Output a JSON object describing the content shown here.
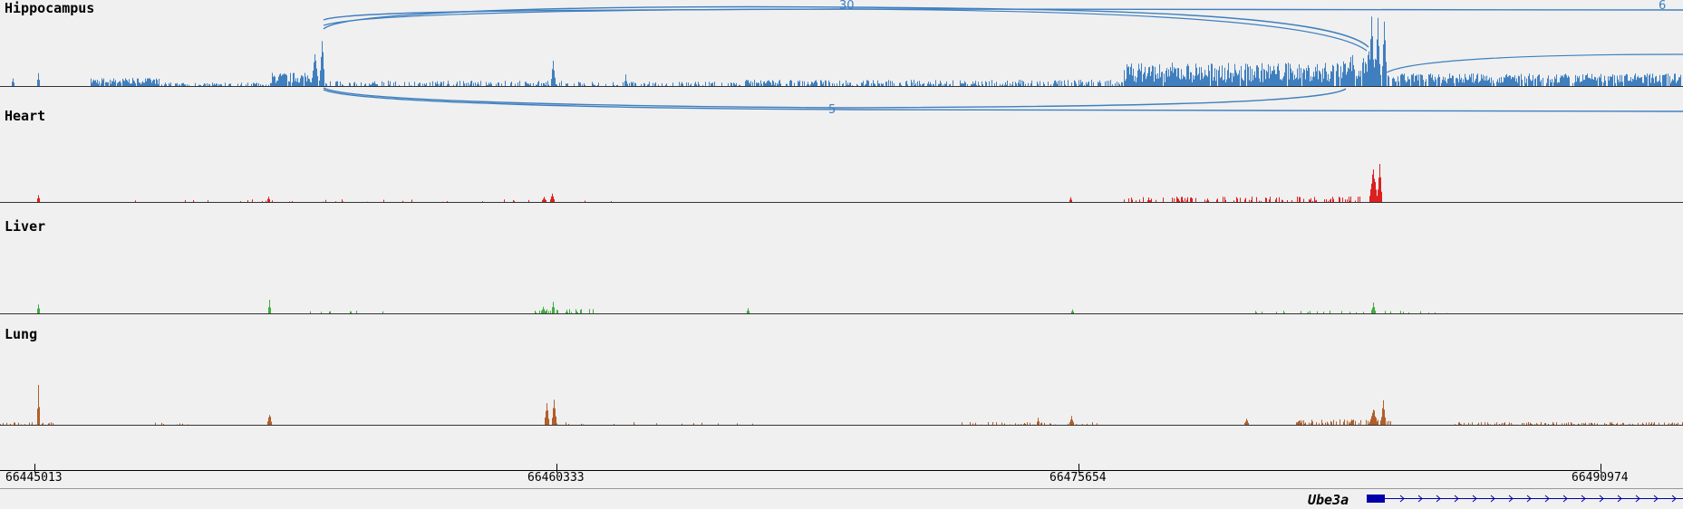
{
  "tracks": [
    {
      "label": "Hippocampus",
      "color": "#3f7fbf"
    },
    {
      "label": "Heart",
      "color": "#dd1f1f"
    },
    {
      "label": "Liver",
      "color": "#3fae3f"
    },
    {
      "label": "Lung",
      "color": "#b05f2a"
    }
  ],
  "junctions": {
    "top_count": "30",
    "top_right_count": "6",
    "bottom_count": "5"
  },
  "axis": {
    "coordinates": [
      "66445013",
      "66460333",
      "66475654",
      "66490974"
    ]
  },
  "gene": {
    "name": "Ube3a",
    "color": "#0000aa",
    "strand": "+"
  }
}
